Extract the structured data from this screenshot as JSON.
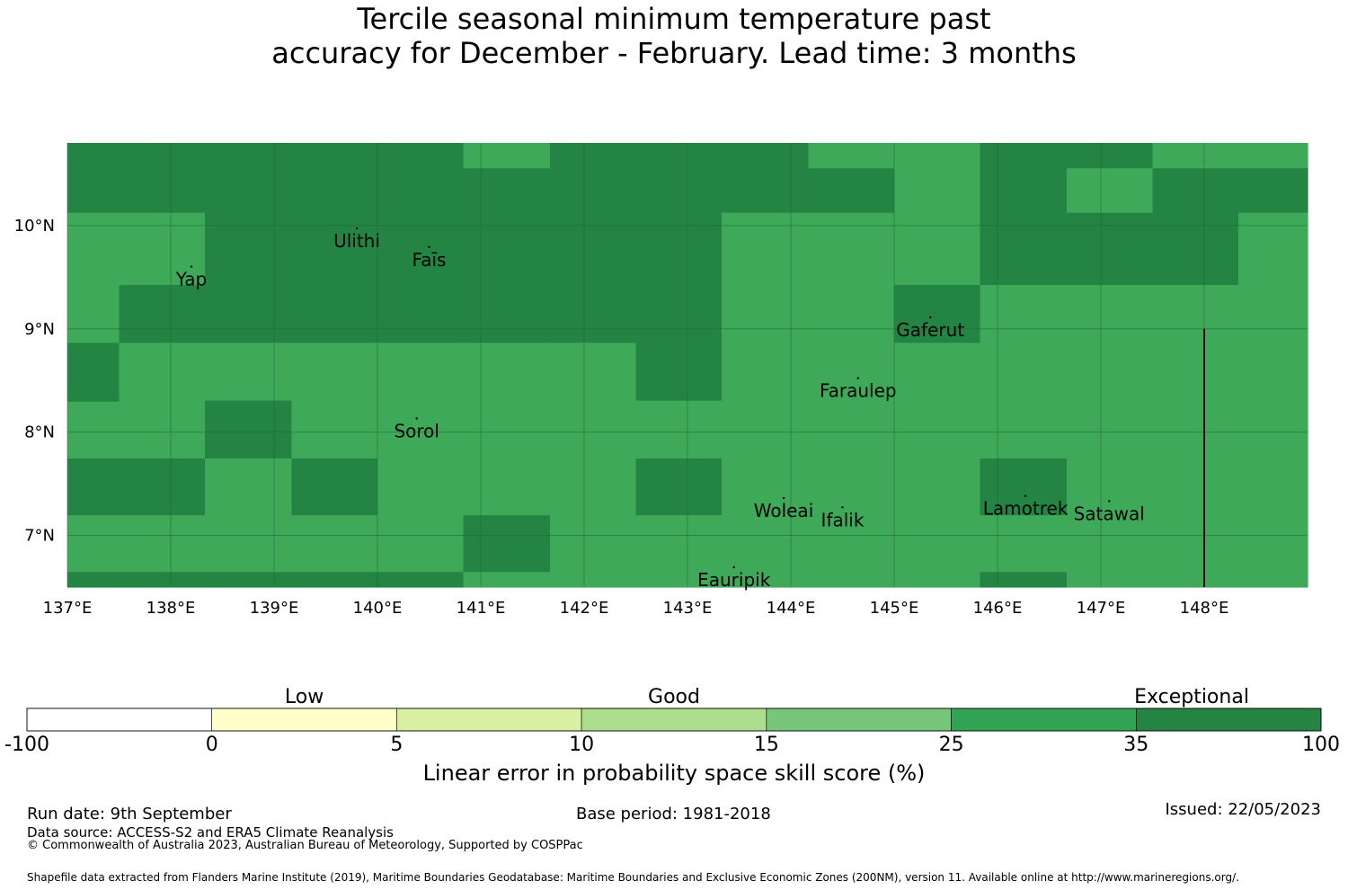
{
  "title": {
    "line1": "Tercile seasonal minimum temperature past",
    "line2": "accuracy for December - February. Lead time: 3 months"
  },
  "map": {
    "lon_range": [
      137,
      149
    ],
    "lat_range": [
      6.5,
      10.8
    ],
    "lon_ticks": [
      {
        "value": 137,
        "label": "137°E"
      },
      {
        "value": 138,
        "label": "138°E"
      },
      {
        "value": 139,
        "label": "139°E"
      },
      {
        "value": 140,
        "label": "140°E"
      },
      {
        "value": 141,
        "label": "141°E"
      },
      {
        "value": 142,
        "label": "142°E"
      },
      {
        "value": 143,
        "label": "143°E"
      },
      {
        "value": 144,
        "label": "144°E"
      },
      {
        "value": 145,
        "label": "145°E"
      },
      {
        "value": 146,
        "label": "146°E"
      },
      {
        "value": 147,
        "label": "147°E"
      },
      {
        "value": 148,
        "label": "148°E"
      }
    ],
    "lat_ticks": [
      {
        "value": 10,
        "label": "10°N"
      },
      {
        "value": 9,
        "label": "9°N"
      },
      {
        "value": 8,
        "label": "8°N"
      },
      {
        "value": 7,
        "label": "7°N"
      }
    ],
    "colors": {
      "good": "#3fa95a",
      "exceptional": "#238443",
      "grid": "#1e6b35",
      "boundary": "#000000"
    },
    "grid_columns": [
      {
        "lon_from": 137.0,
        "lon_to": 137.5,
        "cells": [
          [
            "E",
            6.5,
            6.65
          ],
          [
            "G",
            6.65,
            7.2
          ],
          [
            "E",
            7.2,
            7.75
          ],
          [
            "G",
            7.75,
            8.3
          ],
          [
            "E",
            8.3,
            8.87
          ],
          [
            "G",
            8.87,
            10.13
          ],
          [
            "E",
            10.13,
            10.8
          ]
        ]
      },
      {
        "lon_from": 137.5,
        "lon_to": 138.33,
        "cells": [
          [
            "E",
            6.5,
            6.65
          ],
          [
            "G",
            6.65,
            7.2
          ],
          [
            "E",
            7.2,
            7.75
          ],
          [
            "G",
            7.75,
            8.87
          ],
          [
            "E",
            8.87,
            9.43
          ],
          [
            "G",
            9.43,
            10.13
          ],
          [
            "E",
            10.13,
            10.8
          ]
        ]
      },
      {
        "lon_from": 138.33,
        "lon_to": 139.17,
        "cells": [
          [
            "E",
            6.5,
            6.65
          ],
          [
            "G",
            6.65,
            7.75
          ],
          [
            "E",
            7.75,
            8.31
          ],
          [
            "G",
            8.31,
            8.87
          ],
          [
            "E",
            8.87,
            10.8
          ]
        ]
      },
      {
        "lon_from": 139.17,
        "lon_to": 140.0,
        "cells": [
          [
            "E",
            6.5,
            6.65
          ],
          [
            "G",
            6.65,
            7.2
          ],
          [
            "E",
            7.2,
            7.75
          ],
          [
            "G",
            7.75,
            8.87
          ],
          [
            "E",
            8.87,
            10.8
          ]
        ]
      },
      {
        "lon_from": 140.0,
        "lon_to": 140.83,
        "cells": [
          [
            "E",
            6.5,
            6.65
          ],
          [
            "G",
            6.65,
            8.87
          ],
          [
            "E",
            8.87,
            10.8
          ]
        ]
      },
      {
        "lon_from": 140.83,
        "lon_to": 141.67,
        "cells": [
          [
            "G",
            6.5,
            6.65
          ],
          [
            "E",
            6.65,
            7.2
          ],
          [
            "G",
            7.2,
            8.87
          ],
          [
            "E",
            8.87,
            10.56
          ],
          [
            "G",
            10.56,
            10.8
          ]
        ]
      },
      {
        "lon_from": 141.67,
        "lon_to": 142.5,
        "cells": [
          [
            "G",
            6.5,
            8.87
          ],
          [
            "E",
            8.87,
            10.8
          ]
        ]
      },
      {
        "lon_from": 142.5,
        "lon_to": 143.33,
        "cells": [
          [
            "G",
            6.5,
            7.2
          ],
          [
            "E",
            7.2,
            7.75
          ],
          [
            "G",
            7.75,
            8.31
          ],
          [
            "E",
            8.31,
            10.8
          ]
        ]
      },
      {
        "lon_from": 143.33,
        "lon_to": 144.17,
        "cells": [
          [
            "G",
            6.5,
            10.13
          ],
          [
            "E",
            10.13,
            10.8
          ]
        ]
      },
      {
        "lon_from": 144.17,
        "lon_to": 145.0,
        "cells": [
          [
            "G",
            6.5,
            10.13
          ],
          [
            "E",
            10.13,
            10.56
          ],
          [
            "G",
            10.56,
            10.8
          ]
        ]
      },
      {
        "lon_from": 145.0,
        "lon_to": 145.83,
        "cells": [
          [
            "G",
            6.5,
            8.87
          ],
          [
            "E",
            8.87,
            9.43
          ],
          [
            "G",
            9.43,
            10.8
          ]
        ]
      },
      {
        "lon_from": 145.83,
        "lon_to": 146.67,
        "cells": [
          [
            "E",
            6.5,
            6.65
          ],
          [
            "G",
            6.65,
            7.2
          ],
          [
            "E",
            7.2,
            7.75
          ],
          [
            "G",
            7.75,
            9.43
          ],
          [
            "E",
            9.43,
            10.8
          ]
        ]
      },
      {
        "lon_from": 146.67,
        "lon_to": 147.5,
        "cells": [
          [
            "G",
            6.5,
            9.43
          ],
          [
            "E",
            9.43,
            10.13
          ],
          [
            "G",
            10.13,
            10.56
          ],
          [
            "E",
            10.56,
            10.8
          ]
        ]
      },
      {
        "lon_from": 147.5,
        "lon_to": 148.33,
        "cells": [
          [
            "G",
            6.5,
            9.43
          ],
          [
            "E",
            9.43,
            10.56
          ],
          [
            "G",
            10.56,
            10.8
          ]
        ]
      },
      {
        "lon_from": 148.33,
        "lon_to": 149.0,
        "cells": [
          [
            "G",
            6.5,
            10.13
          ],
          [
            "E",
            10.13,
            10.56
          ],
          [
            "G",
            10.56,
            10.8
          ]
        ]
      }
    ],
    "boundary_line": {
      "lon": 148.0,
      "lat_from": 6.5,
      "lat_to": 9.0
    },
    "places": [
      {
        "name": "Ulithi",
        "lon": 139.8,
        "lat": 9.85
      },
      {
        "name": "Faīs",
        "lon": 140.5,
        "lat": 9.67
      },
      {
        "name": "Yap",
        "lon": 138.2,
        "lat": 9.48
      },
      {
        "name": "Gaferut",
        "lon": 145.35,
        "lat": 8.99
      },
      {
        "name": "Faraulep",
        "lon": 144.65,
        "lat": 8.4
      },
      {
        "name": "Sorol",
        "lon": 140.38,
        "lat": 8.01
      },
      {
        "name": "Woleai",
        "lon": 143.93,
        "lat": 7.24
      },
      {
        "name": "Ifalik",
        "lon": 144.5,
        "lat": 7.15
      },
      {
        "name": "Lamotrek",
        "lon": 146.27,
        "lat": 7.26
      },
      {
        "name": "Satawal",
        "lon": 147.08,
        "lat": 7.21
      },
      {
        "name": "Eauripik",
        "lon": 143.45,
        "lat": 6.57
      }
    ]
  },
  "legend": {
    "category_labels": [
      {
        "label": "Low",
        "at": 1.5
      },
      {
        "label": "Good",
        "at": 3.5
      },
      {
        "label": "Exceptional",
        "at": 6.3
      }
    ],
    "segments": [
      {
        "from": -100,
        "to": 0,
        "color": "#ffffff"
      },
      {
        "from": 0,
        "to": 5,
        "color": "#ffffcc"
      },
      {
        "from": 5,
        "to": 10,
        "color": "#d9f0a3"
      },
      {
        "from": 10,
        "to": 15,
        "color": "#addd8e"
      },
      {
        "from": 15,
        "to": 25,
        "color": "#78c679"
      },
      {
        "from": 25,
        "to": 35,
        "color": "#31a354"
      },
      {
        "from": 35,
        "to": 100,
        "color": "#238443"
      }
    ],
    "tick_labels": [
      "-100",
      "0",
      "5",
      "10",
      "15",
      "25",
      "35",
      "100"
    ],
    "axis_title": "Linear error in probability space skill score (%)"
  },
  "footer": {
    "run_date": "Run date: 9th September",
    "base_period": "Base period: 1981-2018",
    "issued": "Issued: 22/05/2023",
    "data_source": "Data source: ACCESS-S2 and ERA5 Climate Reanalysis",
    "copyright": "© Commonwealth of Australia 2023, Australian Bureau of Meteorology, Supported by COSPPac",
    "shapefile": "Shapefile data extracted from Flanders Marine Institute (2019), Maritime Boundaries Geodatabase: Maritime Boundaries and Exclusive Economic Zones (200NM), version 11. Available online at http://www.marineregions.org/."
  }
}
